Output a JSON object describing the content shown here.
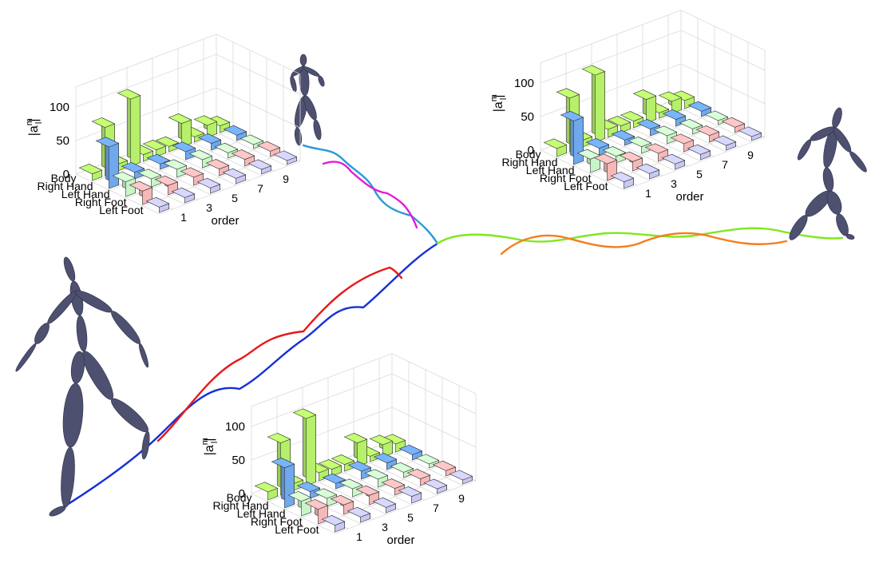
{
  "axes": {
    "z_label": "|a",
    "z_label_sup": "m",
    "z_label_sub": "l",
    "z_label_end": "|",
    "z_ticks": [
      "0",
      "50",
      "100"
    ],
    "row_labels": [
      "Body",
      "Right Hand",
      "Left Hand",
      "Right Foot",
      "Left Foot"
    ],
    "order_label": "order",
    "order_ticks": [
      "1",
      "3",
      "5",
      "7",
      "9"
    ]
  },
  "colors": {
    "body": "#c8c8f0",
    "right_hand": "#f5b8b8",
    "left_hand": "#c8f5c8",
    "right_foot": "#6fa8ec",
    "left_foot": "#b6f06a",
    "figure": "#4e5070",
    "traj_blue": "#1530d8",
    "traj_red": "#e81818",
    "traj_cyan": "#2a9ad8",
    "traj_magenta": "#e01cd8",
    "traj_green": "#7fe81e",
    "traj_orange": "#f57d1c"
  },
  "chart_data": [
    {
      "type": "bar3d",
      "zlabel": "|a_l^m|",
      "xlabel": "order",
      "rows": [
        "Body",
        "Right Hand",
        "Left Hand",
        "Right Foot",
        "Left Foot"
      ],
      "orders": [
        0,
        1,
        2,
        3,
        4,
        5,
        6,
        7,
        8,
        9,
        10
      ],
      "zlim": [
        0,
        100
      ],
      "series": [
        {
          "name": "Body",
          "values": [
            8,
            0,
            8,
            0,
            8,
            0,
            8,
            0,
            7,
            0,
            6
          ]
        },
        {
          "name": "Right Hand",
          "values": [
            20,
            0,
            14,
            0,
            12,
            0,
            10,
            0,
            10,
            0,
            8
          ]
        },
        {
          "name": "Left Hand",
          "values": [
            22,
            0,
            12,
            0,
            12,
            0,
            12,
            0,
            8,
            0,
            6
          ]
        },
        {
          "name": "Right Foot",
          "values": [
            62,
            0,
            10,
            0,
            8,
            0,
            12,
            0,
            10,
            0,
            8
          ]
        },
        {
          "name": "Left Foot",
          "values": [
            10,
            72,
            10,
            100,
            10,
            10,
            8,
            35,
            8,
            18,
            10
          ]
        }
      ]
    },
    {
      "type": "bar3d",
      "zlabel": "|a_l^m|",
      "xlabel": "order",
      "rows": [
        "Body",
        "Right Hand",
        "Left Hand",
        "Right Foot",
        "Left Foot"
      ],
      "orders": [
        0,
        1,
        2,
        3,
        4,
        5,
        6,
        7,
        8,
        9,
        10
      ],
      "zlim": [
        0,
        100
      ],
      "series": [
        {
          "name": "Body",
          "values": [
            10,
            0,
            8,
            0,
            8,
            0,
            8,
            0,
            7,
            0,
            6
          ]
        },
        {
          "name": "Right Hand",
          "values": [
            25,
            0,
            14,
            0,
            12,
            0,
            12,
            0,
            10,
            0,
            8
          ]
        },
        {
          "name": "Left Hand",
          "values": [
            20,
            0,
            10,
            0,
            10,
            0,
            12,
            0,
            8,
            0,
            6
          ]
        },
        {
          "name": "Right Foot",
          "values": [
            65,
            0,
            10,
            0,
            8,
            0,
            10,
            0,
            10,
            0,
            8
          ]
        },
        {
          "name": "Left Foot",
          "values": [
            12,
            80,
            10,
            100,
            12,
            10,
            10,
            35,
            8,
            18,
            12
          ]
        }
      ]
    },
    {
      "type": "bar3d",
      "zlabel": "|a_l^m|",
      "xlabel": "order",
      "rows": [
        "Body",
        "Right Hand",
        "Left Hand",
        "Right Foot",
        "Left Foot"
      ],
      "orders": [
        0,
        1,
        2,
        3,
        4,
        5,
        6,
        7,
        8,
        9,
        10
      ],
      "zlim": [
        0,
        100
      ],
      "series": [
        {
          "name": "Body",
          "values": [
            10,
            0,
            8,
            0,
            8,
            0,
            10,
            0,
            7,
            0,
            6
          ]
        },
        {
          "name": "Right Hand",
          "values": [
            22,
            0,
            14,
            0,
            14,
            0,
            10,
            0,
            10,
            0,
            8
          ]
        },
        {
          "name": "Left Hand",
          "values": [
            22,
            0,
            12,
            0,
            12,
            0,
            12,
            0,
            8,
            0,
            6
          ]
        },
        {
          "name": "Right Foot",
          "values": [
            60,
            0,
            10,
            0,
            8,
            0,
            12,
            0,
            10,
            0,
            8
          ]
        },
        {
          "name": "Left Foot",
          "values": [
            12,
            78,
            10,
            100,
            12,
            10,
            10,
            35,
            8,
            18,
            12
          ]
        }
      ]
    }
  ]
}
